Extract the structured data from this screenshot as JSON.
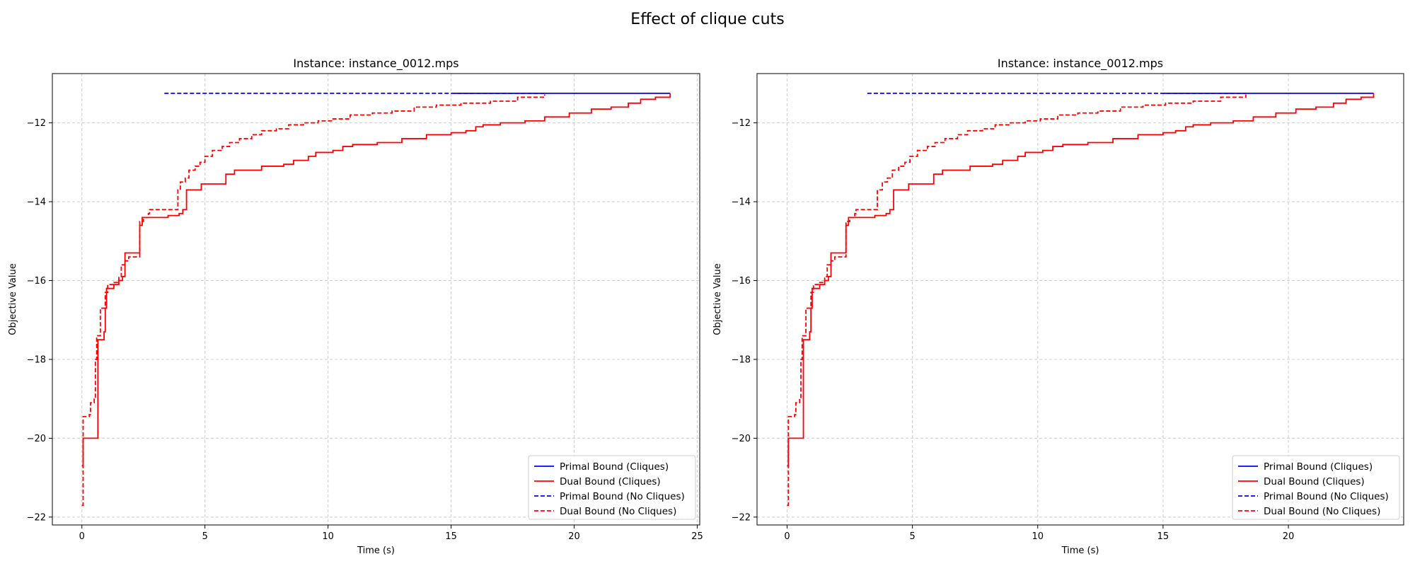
{
  "figure": {
    "suptitle": "Effect of clique cuts"
  },
  "colors": {
    "primal": "#0000ff",
    "dual": "#ff0000",
    "grid": "#cccccc",
    "axes": "#000000"
  },
  "chart_data": [
    {
      "type": "line",
      "title": "Instance: instance_0012.mps",
      "xlabel": "Time (s)",
      "ylabel": "Objective Value",
      "xlim": [
        -1.2,
        25.1
      ],
      "ylim": [
        -22.2,
        -10.75
      ],
      "xticks": [
        0,
        5,
        10,
        15,
        20,
        25
      ],
      "yticks": [
        -22,
        -20,
        -18,
        -16,
        -14,
        -12
      ],
      "grid": true,
      "legend_position": "lower-right",
      "series": [
        {
          "name": "Primal Bound (Cliques)",
          "color": "primal",
          "dash": "solid",
          "points": [
            [
              15.1,
              -11.25
            ],
            [
              23.9,
              -11.25
            ]
          ]
        },
        {
          "name": "Dual Bound (Cliques)",
          "color": "dual",
          "dash": "solid",
          "points": [
            [
              0.0,
              -20.7
            ],
            [
              0.05,
              -20.0
            ],
            [
              0.6,
              -20.0
            ],
            [
              0.65,
              -17.5
            ],
            [
              0.9,
              -17.3
            ],
            [
              0.95,
              -16.7
            ],
            [
              1.0,
              -16.2
            ],
            [
              1.3,
              -16.1
            ],
            [
              1.5,
              -16.0
            ],
            [
              1.65,
              -15.9
            ],
            [
              1.75,
              -15.3
            ],
            [
              2.2,
              -15.3
            ],
            [
              2.35,
              -14.6
            ],
            [
              2.45,
              -14.4
            ],
            [
              2.9,
              -14.4
            ],
            [
              3.5,
              -14.35
            ],
            [
              3.95,
              -14.3
            ],
            [
              4.1,
              -14.2
            ],
            [
              4.25,
              -13.7
            ],
            [
              4.7,
              -13.7
            ],
            [
              4.85,
              -13.55
            ],
            [
              5.7,
              -13.55
            ],
            [
              5.85,
              -13.3
            ],
            [
              6.2,
              -13.2
            ],
            [
              7.0,
              -13.2
            ],
            [
              7.3,
              -13.1
            ],
            [
              8.2,
              -13.05
            ],
            [
              8.6,
              -12.95
            ],
            [
              9.2,
              -12.85
            ],
            [
              9.5,
              -12.75
            ],
            [
              10.2,
              -12.7
            ],
            [
              10.6,
              -12.6
            ],
            [
              11.0,
              -12.55
            ],
            [
              12.0,
              -12.5
            ],
            [
              13.0,
              -12.4
            ],
            [
              14.0,
              -12.3
            ],
            [
              15.0,
              -12.25
            ],
            [
              15.6,
              -12.2
            ],
            [
              16.0,
              -12.1
            ],
            [
              16.3,
              -12.05
            ],
            [
              17.0,
              -12.0
            ],
            [
              18.0,
              -11.95
            ],
            [
              18.8,
              -11.85
            ],
            [
              19.8,
              -11.75
            ],
            [
              20.7,
              -11.65
            ],
            [
              21.5,
              -11.6
            ],
            [
              22.2,
              -11.5
            ],
            [
              22.7,
              -11.4
            ],
            [
              23.3,
              -11.35
            ],
            [
              23.9,
              -11.25
            ]
          ]
        },
        {
          "name": "Primal Bound (No Cliques)",
          "color": "primal",
          "dash": "dashed",
          "points": [
            [
              3.35,
              -11.25
            ],
            [
              18.8,
              -11.25
            ]
          ]
        },
        {
          "name": "Dual Bound (No Cliques)",
          "color": "dual",
          "dash": "dashed",
          "points": [
            [
              0.0,
              -21.7
            ],
            [
              0.05,
              -19.45
            ],
            [
              0.3,
              -19.4
            ],
            [
              0.35,
              -19.1
            ],
            [
              0.5,
              -19.0
            ],
            [
              0.55,
              -18.0
            ],
            [
              0.6,
              -17.4
            ],
            [
              0.75,
              -16.7
            ],
            [
              0.95,
              -16.3
            ],
            [
              1.05,
              -16.1
            ],
            [
              1.3,
              -16.05
            ],
            [
              1.5,
              -15.9
            ],
            [
              1.6,
              -15.6
            ],
            [
              1.75,
              -15.5
            ],
            [
              1.9,
              -15.4
            ],
            [
              2.35,
              -14.5
            ],
            [
              2.5,
              -14.4
            ],
            [
              2.7,
              -14.3
            ],
            [
              2.75,
              -14.2
            ],
            [
              3.85,
              -14.2
            ],
            [
              3.9,
              -13.7
            ],
            [
              4.0,
              -13.5
            ],
            [
              4.2,
              -13.4
            ],
            [
              4.35,
              -13.2
            ],
            [
              4.6,
              -13.1
            ],
            [
              4.8,
              -13.0
            ],
            [
              5.0,
              -12.85
            ],
            [
              5.3,
              -12.7
            ],
            [
              5.7,
              -12.6
            ],
            [
              6.0,
              -12.5
            ],
            [
              6.4,
              -12.4
            ],
            [
              6.9,
              -12.3
            ],
            [
              7.3,
              -12.2
            ],
            [
              7.9,
              -12.15
            ],
            [
              8.4,
              -12.05
            ],
            [
              9.0,
              -12.0
            ],
            [
              9.6,
              -11.95
            ],
            [
              10.2,
              -11.9
            ],
            [
              10.9,
              -11.8
            ],
            [
              11.8,
              -11.75
            ],
            [
              12.6,
              -11.7
            ],
            [
              13.5,
              -11.6
            ],
            [
              14.4,
              -11.55
            ],
            [
              15.4,
              -11.5
            ],
            [
              16.6,
              -11.45
            ],
            [
              17.7,
              -11.35
            ],
            [
              18.8,
              -11.28
            ]
          ]
        }
      ]
    },
    {
      "type": "line",
      "title": "Instance: instance_0012.mps",
      "xlabel": "Time (s)",
      "ylabel": "Objective Value",
      "xlim": [
        -1.2,
        24.6
      ],
      "ylim": [
        -22.2,
        -10.75
      ],
      "xticks": [
        0,
        5,
        10,
        15,
        20
      ],
      "yticks": [
        -22,
        -20,
        -18,
        -16,
        -14,
        -12
      ],
      "grid": true,
      "legend_position": "lower-right",
      "series": [
        {
          "name": "Primal Bound (Cliques)",
          "color": "primal",
          "dash": "solid",
          "points": [
            [
              15.0,
              -11.25
            ],
            [
              23.4,
              -11.25
            ]
          ]
        },
        {
          "name": "Dual Bound (Cliques)",
          "color": "dual",
          "dash": "solid",
          "points": [
            [
              0.0,
              -20.7
            ],
            [
              0.05,
              -20.0
            ],
            [
              0.6,
              -20.0
            ],
            [
              0.65,
              -17.5
            ],
            [
              0.9,
              -17.3
            ],
            [
              0.95,
              -16.7
            ],
            [
              1.0,
              -16.2
            ],
            [
              1.3,
              -16.1
            ],
            [
              1.5,
              -16.0
            ],
            [
              1.65,
              -15.9
            ],
            [
              1.75,
              -15.3
            ],
            [
              2.2,
              -15.3
            ],
            [
              2.35,
              -14.6
            ],
            [
              2.45,
              -14.4
            ],
            [
              2.9,
              -14.4
            ],
            [
              3.5,
              -14.35
            ],
            [
              3.95,
              -14.3
            ],
            [
              4.1,
              -14.2
            ],
            [
              4.25,
              -13.7
            ],
            [
              4.7,
              -13.7
            ],
            [
              4.85,
              -13.55
            ],
            [
              5.7,
              -13.55
            ],
            [
              5.85,
              -13.3
            ],
            [
              6.2,
              -13.2
            ],
            [
              7.0,
              -13.2
            ],
            [
              7.3,
              -13.1
            ],
            [
              8.2,
              -13.05
            ],
            [
              8.6,
              -12.95
            ],
            [
              9.2,
              -12.85
            ],
            [
              9.5,
              -12.75
            ],
            [
              10.2,
              -12.7
            ],
            [
              10.6,
              -12.6
            ],
            [
              11.0,
              -12.55
            ],
            [
              12.0,
              -12.5
            ],
            [
              13.0,
              -12.4
            ],
            [
              14.0,
              -12.3
            ],
            [
              15.0,
              -12.25
            ],
            [
              15.5,
              -12.2
            ],
            [
              15.9,
              -12.1
            ],
            [
              16.2,
              -12.05
            ],
            [
              16.9,
              -12.0
            ],
            [
              17.8,
              -11.95
            ],
            [
              18.6,
              -11.85
            ],
            [
              19.5,
              -11.75
            ],
            [
              20.3,
              -11.65
            ],
            [
              21.1,
              -11.6
            ],
            [
              21.8,
              -11.5
            ],
            [
              22.3,
              -11.4
            ],
            [
              22.9,
              -11.35
            ],
            [
              23.4,
              -11.25
            ]
          ]
        },
        {
          "name": "Primal Bound (No Cliques)",
          "color": "primal",
          "dash": "dashed",
          "points": [
            [
              3.2,
              -11.25
            ],
            [
              18.3,
              -11.25
            ]
          ]
        },
        {
          "name": "Dual Bound (No Cliques)",
          "color": "dual",
          "dash": "dashed",
          "points": [
            [
              0.0,
              -21.7
            ],
            [
              0.05,
              -19.45
            ],
            [
              0.3,
              -19.4
            ],
            [
              0.35,
              -19.1
            ],
            [
              0.5,
              -19.0
            ],
            [
              0.55,
              -18.0
            ],
            [
              0.6,
              -17.4
            ],
            [
              0.75,
              -16.7
            ],
            [
              0.95,
              -16.3
            ],
            [
              1.05,
              -16.1
            ],
            [
              1.3,
              -16.05
            ],
            [
              1.5,
              -15.9
            ],
            [
              1.6,
              -15.6
            ],
            [
              1.75,
              -15.5
            ],
            [
              1.9,
              -15.4
            ],
            [
              2.35,
              -14.5
            ],
            [
              2.5,
              -14.4
            ],
            [
              2.7,
              -14.3
            ],
            [
              2.75,
              -14.2
            ],
            [
              3.55,
              -14.2
            ],
            [
              3.6,
              -13.7
            ],
            [
              3.8,
              -13.5
            ],
            [
              4.0,
              -13.4
            ],
            [
              4.2,
              -13.2
            ],
            [
              4.45,
              -13.1
            ],
            [
              4.7,
              -13.0
            ],
            [
              4.9,
              -12.85
            ],
            [
              5.2,
              -12.7
            ],
            [
              5.6,
              -12.6
            ],
            [
              5.9,
              -12.5
            ],
            [
              6.3,
              -12.4
            ],
            [
              6.8,
              -12.3
            ],
            [
              7.2,
              -12.2
            ],
            [
              7.8,
              -12.15
            ],
            [
              8.3,
              -12.05
            ],
            [
              8.9,
              -12.0
            ],
            [
              9.5,
              -11.95
            ],
            [
              10.1,
              -11.9
            ],
            [
              10.8,
              -11.8
            ],
            [
              11.6,
              -11.75
            ],
            [
              12.4,
              -11.7
            ],
            [
              13.3,
              -11.6
            ],
            [
              14.2,
              -11.55
            ],
            [
              15.1,
              -11.5
            ],
            [
              16.2,
              -11.45
            ],
            [
              17.3,
              -11.35
            ],
            [
              18.3,
              -11.28
            ]
          ]
        }
      ]
    }
  ]
}
